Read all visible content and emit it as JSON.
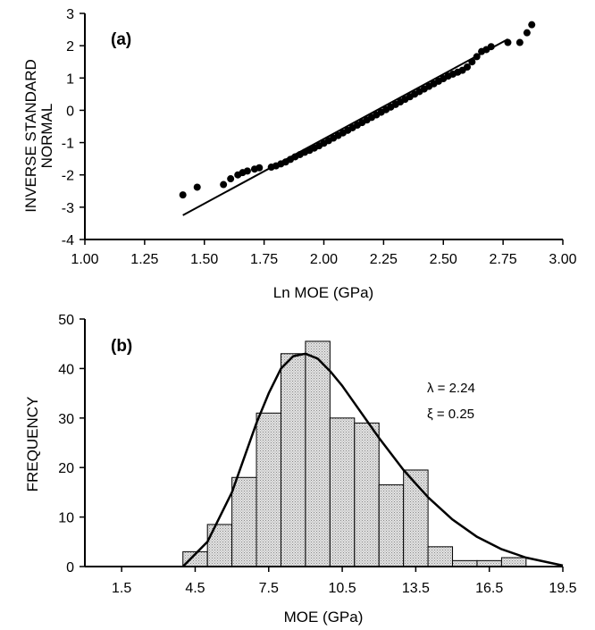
{
  "chart_data": [
    {
      "type": "scatter",
      "panel_label": "(a)",
      "xlabel": "Ln MOE (GPa)",
      "ylabel": [
        "INVERSE STANDARD",
        "NORMAL"
      ],
      "xlim": [
        1.0,
        3.0
      ],
      "ylim": [
        -4,
        3
      ],
      "xticks": [
        "1.00",
        "1.25",
        "1.50",
        "1.75",
        "2.00",
        "2.25",
        "2.50",
        "2.75",
        "3.00"
      ],
      "yticks": [
        "3",
        "2",
        "1",
        "0",
        "-1",
        "-2",
        "-3",
        "-4"
      ],
      "fit_line": {
        "x": [
          1.41,
          2.77
        ],
        "y": [
          -3.25,
          2.2
        ]
      },
      "points": [
        [
          1.41,
          -2.62
        ],
        [
          1.47,
          -2.38
        ],
        [
          1.58,
          -2.3
        ],
        [
          1.61,
          -2.12
        ],
        [
          1.64,
          -2.0
        ],
        [
          1.66,
          -1.93
        ],
        [
          1.68,
          -1.88
        ],
        [
          1.71,
          -1.82
        ],
        [
          1.73,
          -1.78
        ],
        [
          1.78,
          -1.76
        ],
        [
          1.8,
          -1.72
        ],
        [
          1.82,
          -1.66
        ],
        [
          1.84,
          -1.6
        ],
        [
          1.86,
          -1.52
        ],
        [
          1.88,
          -1.44
        ],
        [
          1.9,
          -1.37
        ],
        [
          1.92,
          -1.3
        ],
        [
          1.94,
          -1.24
        ],
        [
          1.96,
          -1.17
        ],
        [
          1.98,
          -1.1
        ],
        [
          2.0,
          -1.02
        ],
        [
          2.02,
          -0.94
        ],
        [
          2.04,
          -0.86
        ],
        [
          2.06,
          -0.78
        ],
        [
          2.08,
          -0.7
        ],
        [
          2.1,
          -0.62
        ],
        [
          2.12,
          -0.54
        ],
        [
          2.14,
          -0.46
        ],
        [
          2.16,
          -0.38
        ],
        [
          2.18,
          -0.3
        ],
        [
          2.2,
          -0.22
        ],
        [
          2.22,
          -0.14
        ],
        [
          2.24,
          -0.06
        ],
        [
          2.26,
          0.02
        ],
        [
          2.28,
          0.1
        ],
        [
          2.3,
          0.18
        ],
        [
          2.32,
          0.26
        ],
        [
          2.34,
          0.34
        ],
        [
          2.36,
          0.42
        ],
        [
          2.38,
          0.5
        ],
        [
          2.4,
          0.58
        ],
        [
          2.42,
          0.66
        ],
        [
          2.44,
          0.74
        ],
        [
          2.46,
          0.82
        ],
        [
          2.48,
          0.9
        ],
        [
          2.5,
          0.98
        ],
        [
          2.52,
          1.06
        ],
        [
          2.54,
          1.12
        ],
        [
          2.56,
          1.18
        ],
        [
          2.58,
          1.24
        ],
        [
          2.6,
          1.34
        ],
        [
          2.62,
          1.5
        ],
        [
          2.64,
          1.66
        ],
        [
          2.66,
          1.82
        ],
        [
          2.68,
          1.88
        ],
        [
          2.7,
          1.97
        ],
        [
          2.77,
          2.1
        ],
        [
          2.82,
          2.1
        ],
        [
          2.85,
          2.4
        ],
        [
          2.87,
          2.65
        ]
      ]
    },
    {
      "type": "bar",
      "panel_label": "(b)",
      "xlabel": "MOE (GPa)",
      "ylabel": "FREQUENCY",
      "xlim": [
        0,
        19.5
      ],
      "ylim": [
        0,
        50
      ],
      "xticks": [
        "1.5",
        "4.5",
        "7.5",
        "10.5",
        "13.5",
        "16.5",
        "19.5"
      ],
      "yticks": [
        "50",
        "40",
        "30",
        "20",
        "10",
        "0"
      ],
      "bin_width": 1.0,
      "bins": [
        {
          "x": 4.5,
          "value": 3
        },
        {
          "x": 5.5,
          "value": 8.5
        },
        {
          "x": 6.5,
          "value": 18
        },
        {
          "x": 7.5,
          "value": 31
        },
        {
          "x": 8.5,
          "value": 43
        },
        {
          "x": 9.5,
          "value": 45.5
        },
        {
          "x": 10.5,
          "value": 30
        },
        {
          "x": 11.5,
          "value": 29
        },
        {
          "x": 12.5,
          "value": 16.5
        },
        {
          "x": 13.5,
          "value": 19.5
        },
        {
          "x": 14.5,
          "value": 4
        },
        {
          "x": 15.5,
          "value": 1.2
        },
        {
          "x": 16.5,
          "value": 1.2
        },
        {
          "x": 17.5,
          "value": 1.8
        }
      ],
      "curve": {
        "lambda": 2.24,
        "xi": 0.25,
        "x": [
          4.0,
          5.0,
          6.0,
          7.0,
          7.5,
          8.0,
          8.5,
          9.0,
          9.5,
          10.0,
          10.5,
          11.0,
          12.0,
          13.0,
          14.0,
          15.0,
          16.0,
          17.0,
          18.0,
          19.5
        ],
        "y": [
          0,
          5,
          15,
          29,
          35,
          40,
          42.5,
          43,
          42,
          39.5,
          36.5,
          33,
          26,
          19.5,
          14,
          9.5,
          6,
          3.5,
          1.8,
          0.2
        ]
      },
      "annotations": [
        "λ = 2.24",
        "ξ = 0.25"
      ]
    }
  ]
}
